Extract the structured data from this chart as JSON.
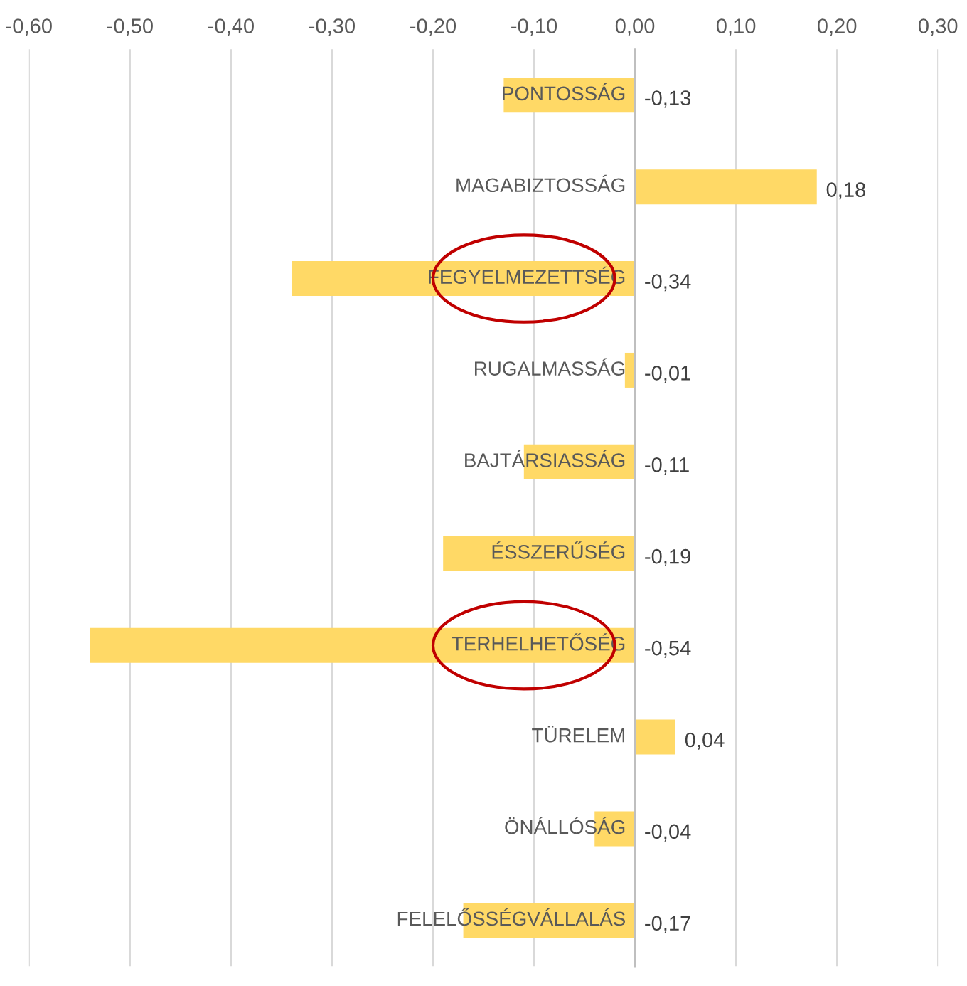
{
  "chart_data": {
    "type": "bar",
    "orientation": "horizontal",
    "categories": [
      "PONTOSSÁG",
      "MAGABIZTOSSÁG",
      "FEGYELMEZETTSÉG",
      "RUGALMASSÁG",
      "BAJTÁRSIASSÁG",
      "ÉSSZERŰSÉG",
      "TERHELHETŐSÉG",
      "TÜRELEM",
      "ÖNÁLLÓSÁG",
      "FELELŐSSÉGVÁLLALÁS"
    ],
    "values": [
      -0.13,
      0.18,
      -0.34,
      -0.01,
      -0.11,
      -0.19,
      -0.54,
      0.04,
      -0.04,
      -0.17
    ],
    "value_labels": [
      "-0,13",
      "0,18",
      "-0,34",
      "-0,01",
      "-0,11",
      "-0,19",
      "-0,54",
      "0,04",
      "-0,04",
      "-0,17"
    ],
    "color": "#ffd966",
    "xlim": [
      -0.6,
      0.3
    ],
    "xticks": [
      {
        "value": -0.6,
        "label": "-0,60"
      },
      {
        "value": -0.5,
        "label": "-0,50"
      },
      {
        "value": -0.4,
        "label": "-0,40"
      },
      {
        "value": -0.3,
        "label": "-0,30"
      },
      {
        "value": -0.2,
        "label": "-0,20"
      },
      {
        "value": -0.1,
        "label": "-0,10"
      },
      {
        "value": 0,
        "label": "0,00"
      },
      {
        "value": 0.1,
        "label": "0,10"
      },
      {
        "value": 0.2,
        "label": "0,20"
      },
      {
        "value": 0.3,
        "label": "0,30"
      }
    ],
    "grid": "x",
    "legend": false
  }
}
